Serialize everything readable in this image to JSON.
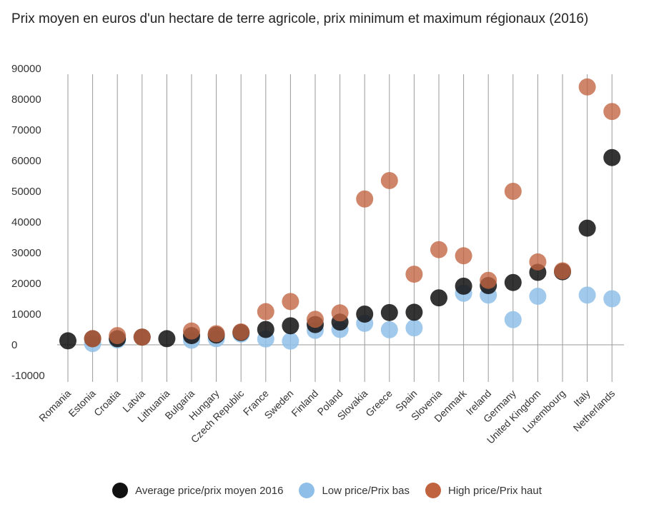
{
  "chart_data": {
    "type": "scatter",
    "title": "Prix moyen en euros d'un hectare de terre agricole, prix minimum et maximum régionaux (2016)",
    "categories": [
      "Romania",
      "Estonia",
      "Croatia",
      "Latvia",
      "Lithuania",
      "Bulgaria",
      "Hungary",
      "Czech Republic",
      "France",
      "Sweden",
      "Finland",
      "Poland",
      "Slovakia",
      "Greece",
      "Spain",
      "Slovenia",
      "Denmark",
      "Ireland",
      "Germany",
      "United Kingdom",
      "Luxembourg",
      "Italy",
      "Netherlands"
    ],
    "ylim": [
      -10000,
      90000
    ],
    "yticks": [
      90000,
      80000,
      70000,
      60000,
      50000,
      40000,
      30000,
      20000,
      10000,
      0,
      -10000
    ],
    "legend_position": "bottom",
    "grid": "vertical",
    "series": [
      {
        "name": "Average price/prix moyen 2016",
        "color": "#111111",
        "values": [
          1300,
          2000,
          2000,
          2500,
          2000,
          3000,
          3200,
          4000,
          5000,
          6200,
          6600,
          7400,
          10000,
          10500,
          10600,
          15300,
          19100,
          19300,
          20300,
          23600,
          23800,
          38000,
          61000
        ]
      },
      {
        "name": "Low price/Prix bas",
        "color": "#8fbfe8",
        "values": [
          null,
          400,
          1600,
          null,
          null,
          1500,
          2000,
          3500,
          1900,
          1200,
          4700,
          5000,
          7000,
          4900,
          5500,
          null,
          16800,
          16200,
          8200,
          15800,
          null,
          16200,
          15000
        ]
      },
      {
        "name": "High price/Prix haut",
        "color": "#c0633f",
        "values": [
          null,
          2000,
          3000,
          2500,
          null,
          4500,
          3600,
          4200,
          10800,
          14100,
          8300,
          10400,
          47500,
          53500,
          23000,
          31000,
          29000,
          21000,
          50000,
          27000,
          24100,
          84000,
          76000
        ]
      }
    ]
  }
}
